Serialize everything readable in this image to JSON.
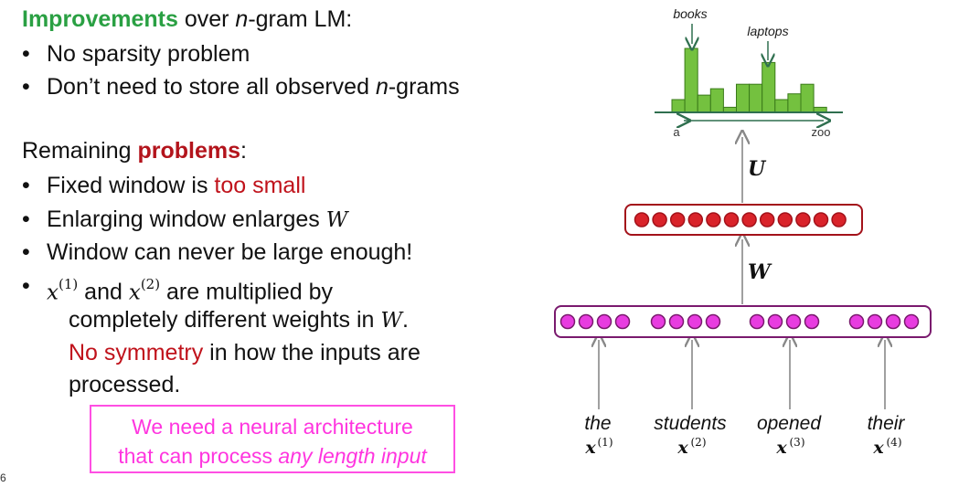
{
  "improvements": {
    "title_highlight": "Improvements",
    "title_rest_1": " over ",
    "title_italic": "n",
    "title_rest_2": "-gram LM:",
    "items": [
      {
        "text": "No sparsity problem"
      },
      {
        "pre": "Don’t need to store all observed ",
        "italic": "n",
        "post": "-grams"
      }
    ]
  },
  "problems": {
    "title_pre": "Remaining ",
    "title_highlight": "problems",
    "title_post": ":",
    "item1_pre": "Fixed window is ",
    "item1_red": "too small",
    "item2_pre": "Enlarging window enlarges ",
    "item2_math": "W",
    "item3": "Window can never be large enough!",
    "item4_x1": "x",
    "item4_sup1": "(1)",
    "item4_and": " and ",
    "item4_x2": "x",
    "item4_sup2": "(2)",
    "item4_post": " are multiplied by",
    "item4_line2_pre": "completely different weights in ",
    "item4_line2_math": "W",
    "item4_line2_post": ".",
    "item4_line3_red": "No symmetry",
    "item4_line3_post": " in how the inputs are",
    "item4_line4": "processed."
  },
  "callout": {
    "line1": "We need a neural architecture",
    "line2_pre": "that can process ",
    "line2_italic": "any length input"
  },
  "slide_number": "6",
  "diagram": {
    "words": [
      {
        "word": "the",
        "x_label": "x",
        "x_sup": "(1)"
      },
      {
        "word": "students",
        "x_label": "x",
        "x_sup": "(2)"
      },
      {
        "word": "opened",
        "x_label": "x",
        "x_sup": "(3)"
      },
      {
        "word": "their",
        "x_label": "x",
        "x_sup": "(4)"
      }
    ],
    "matrix_w": "W",
    "matrix_u": "U",
    "input_neurons_per_word": 4,
    "hidden_neurons": 12,
    "colors": {
      "input_fill": "#e83ce0",
      "input_box": "#7a1a6e",
      "hidden_fill": "#d9232a",
      "hidden_box": "#a3121a",
      "bar_fill": "#74c13f",
      "bar_stroke": "#3a7a1a",
      "axis": "#2f6f4f",
      "arrow": "#888888"
    },
    "histogram": {
      "label_books": "books",
      "label_laptops": "laptops",
      "axis_start": "a",
      "axis_end": "zoo",
      "values": [
        0.2,
        1.0,
        0.27,
        0.37,
        0.08,
        0.44,
        0.44,
        0.78,
        0.2,
        0.29,
        0.44,
        0.08
      ],
      "books_index": 1,
      "laptops_index": 7
    }
  }
}
